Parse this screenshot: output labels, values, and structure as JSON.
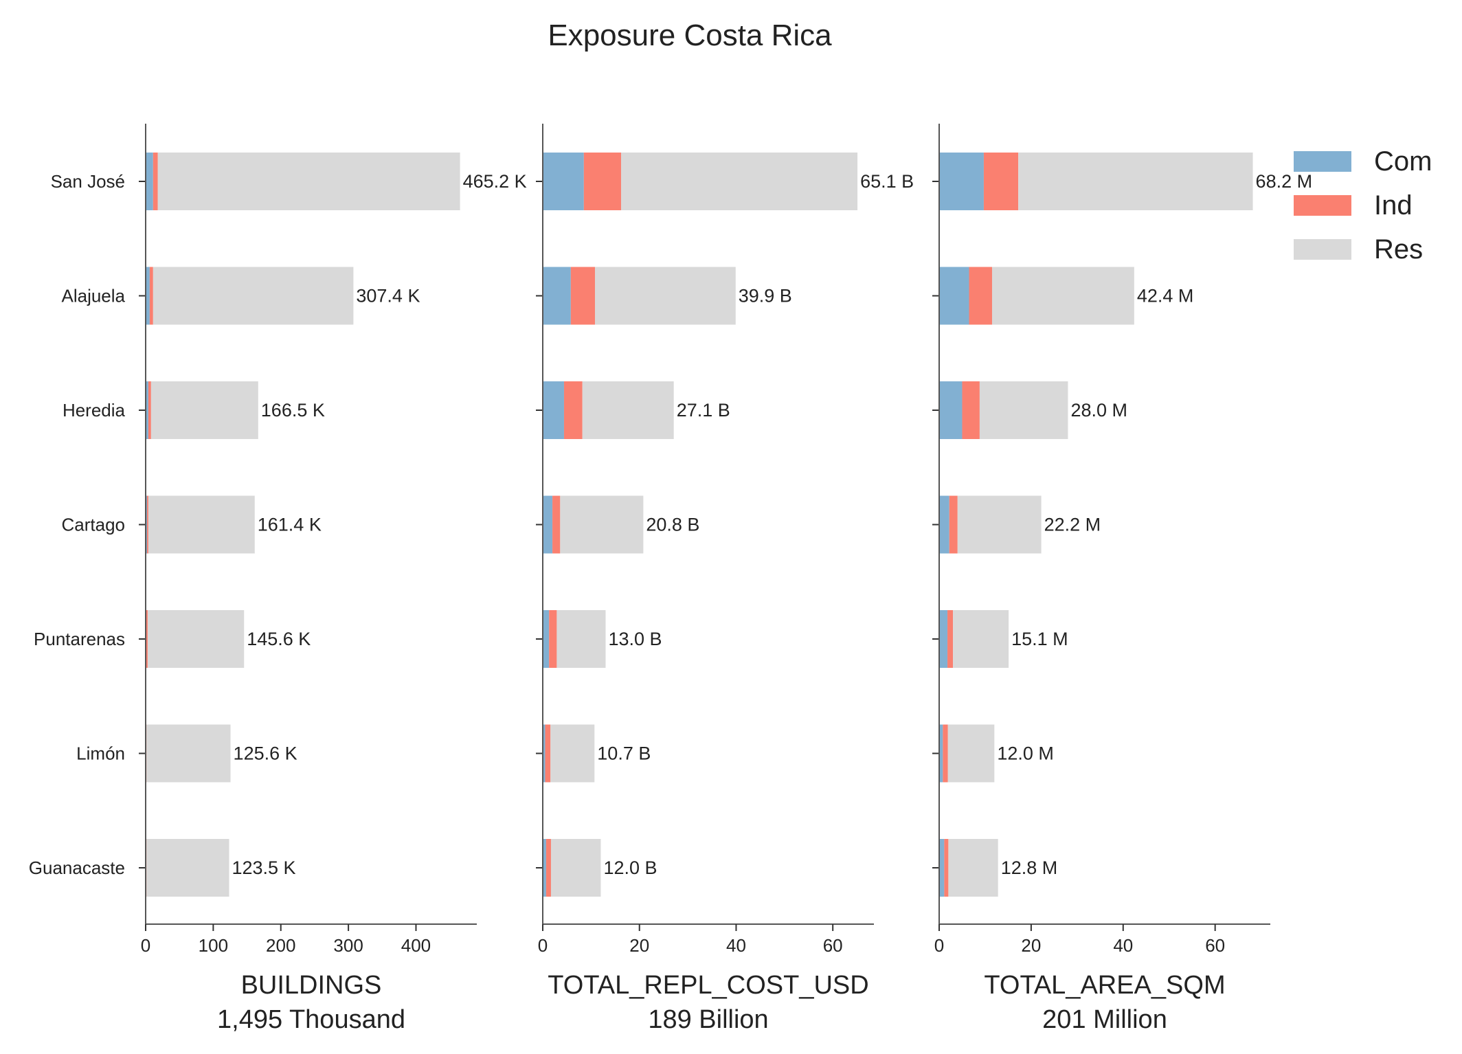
{
  "chart_data": {
    "type": "bar",
    "orientation": "horizontal",
    "stacked": true,
    "title": "Exposure Costa Rica",
    "legend_position": "top-right",
    "grid": false,
    "categories": [
      "San José",
      "Alajuela",
      "Heredia",
      "Cartago",
      "Puntarenas",
      "Limón",
      "Guanacaste"
    ],
    "series_colors": {
      "Com": "#82b0d2",
      "Ind": "#fa8070",
      "Res": "#d9d9d9"
    },
    "legend": [
      "Com",
      "Ind",
      "Res"
    ],
    "panels": [
      {
        "xlabel": "BUILDINGS",
        "subtitle": "1,495 Thousand",
        "xlim": [
          0,
          490
        ],
        "xticks": [
          0,
          100,
          200,
          300,
          400
        ],
        "series": [
          {
            "name": "Com",
            "values": [
              11,
              6,
              4,
              2,
              1,
              0.5,
              0.5
            ]
          },
          {
            "name": "Ind",
            "values": [
              7,
              5,
              4,
              2,
              2,
              0.8,
              0.8
            ]
          },
          {
            "name": "Res",
            "values": [
              447.2,
              296.4,
              158.5,
              157.4,
              142.6,
              124.3,
              122.2
            ]
          }
        ],
        "labels": [
          "465.2 K",
          "307.4 K",
          "166.5 K",
          "161.4 K",
          "145.6 K",
          "125.6 K",
          "123.5 K"
        ]
      },
      {
        "xlabel": "TOTAL_REPL_COST_USD",
        "subtitle": "189 Billion",
        "xlim": [
          0,
          68.5
        ],
        "xticks": [
          0,
          20,
          40,
          60
        ],
        "series": [
          {
            "name": "Com",
            "values": [
              8.5,
              5.8,
              4.4,
              2.0,
              1.3,
              0.5,
              0.7
            ]
          },
          {
            "name": "Ind",
            "values": [
              7.7,
              5.0,
              3.8,
              1.6,
              1.6,
              1.1,
              1.0
            ]
          },
          {
            "name": "Res",
            "values": [
              48.9,
              29.1,
              18.9,
              17.2,
              10.1,
              9.1,
              10.3
            ]
          }
        ],
        "labels": [
          "65.1 B",
          "39.9 B",
          "27.1 B",
          "20.8 B",
          "13.0 B",
          "10.7 B",
          "12.0 B"
        ]
      },
      {
        "xlabel": "TOTAL_AREA_SQM",
        "subtitle": "201 Million",
        "xlim": [
          0,
          72
        ],
        "xticks": [
          0,
          20,
          40,
          60
        ],
        "series": [
          {
            "name": "Com",
            "values": [
              9.7,
              6.5,
              5.0,
              2.2,
              1.8,
              0.8,
              1.1
            ]
          },
          {
            "name": "Ind",
            "values": [
              7.5,
              5.0,
              3.8,
              1.8,
              1.2,
              1.1,
              0.9
            ]
          },
          {
            "name": "Res",
            "values": [
              51.0,
              30.9,
              19.2,
              18.2,
              12.1,
              10.1,
              10.8
            ]
          }
        ],
        "labels": [
          "68.2 M",
          "42.4 M",
          "28.0 M",
          "22.2 M",
          "15.1 M",
          "12.0 M",
          "12.8 M"
        ]
      }
    ]
  }
}
